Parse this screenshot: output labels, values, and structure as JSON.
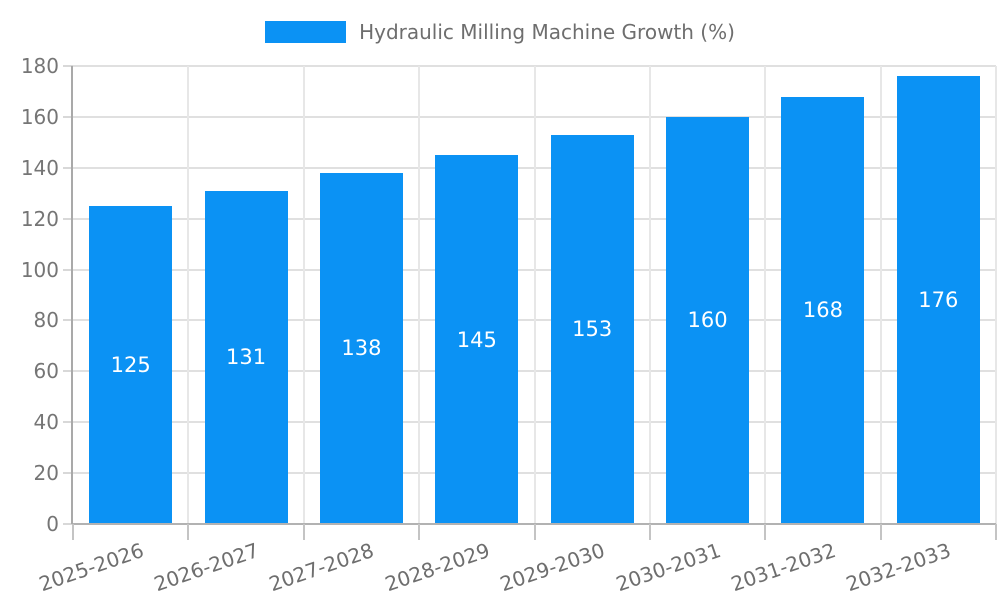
{
  "legend": {
    "label": "Hydraulic Milling Machine Growth (%)"
  },
  "chart_data": {
    "type": "bar",
    "title": "Hydraulic Milling Machine Growth (%)",
    "categories": [
      "2025-2026",
      "2026-2027",
      "2027-2028",
      "2028-2029",
      "2029-2030",
      "2030-2031",
      "2031-2032",
      "2032-2033"
    ],
    "values": [
      125,
      131,
      138,
      145,
      153,
      160,
      168,
      176
    ],
    "bar_value_labels": [
      "125",
      "131",
      "138",
      "145",
      "153",
      "160",
      "168",
      "176"
    ],
    "xlabel": "",
    "ylabel": "",
    "ylim": [
      0,
      180
    ],
    "yticks": [
      0,
      20,
      40,
      60,
      80,
      100,
      120,
      140,
      160,
      180
    ],
    "grid": true,
    "legend_position": "top",
    "colors": {
      "bar": "#0b92f4",
      "bar_label": "#ffffff",
      "axis_text": "#757575",
      "category_text": "#6e6e6e",
      "legend_text": "#6e6e6e",
      "h_gridline": "#e0e0e0",
      "v_gridline": "#e7e7e7",
      "axis_line": "#b2b2b2"
    }
  }
}
